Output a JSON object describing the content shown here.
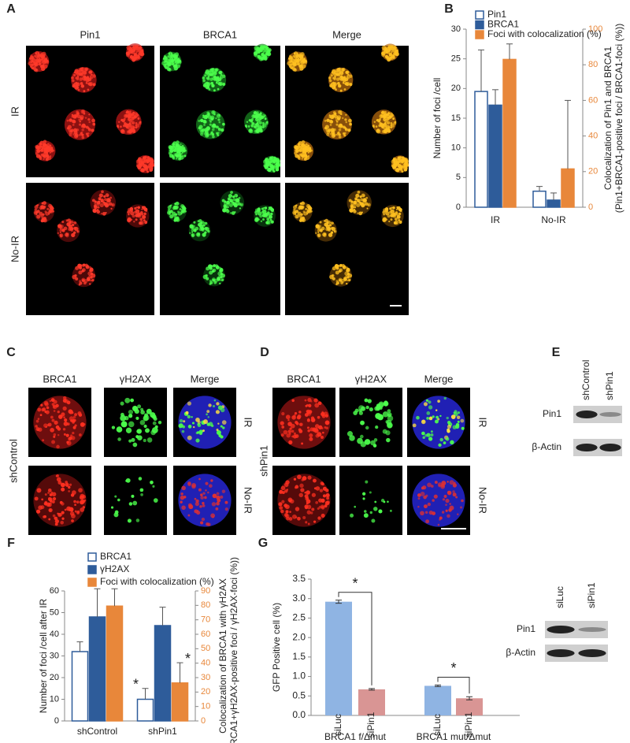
{
  "panel_labels": [
    "A",
    "B",
    "C",
    "D",
    "E",
    "F",
    "G"
  ],
  "panel_a": {
    "columns": [
      "Pin1",
      "BRCA1",
      "Merge"
    ],
    "rows": [
      "IR",
      "No-IR"
    ]
  },
  "panel_c": {
    "columns": [
      "BRCA1",
      "γH2AX",
      "Merge"
    ],
    "condition": "shControl",
    "rows": [
      "IR",
      "No-IR"
    ]
  },
  "panel_d": {
    "columns": [
      "BRCA1",
      "γH2AX",
      "Merge"
    ],
    "condition": "shPin1",
    "rows": [
      "IR",
      "No-IR"
    ]
  },
  "panel_e": {
    "lanes": [
      "shControl",
      "shPin1"
    ],
    "rows": [
      "Pin1",
      "β-Actin"
    ]
  },
  "chart_data": [
    {
      "type": "bar",
      "categories": [
        "IR",
        "No-IR"
      ],
      "ylabel": "Number of foci /cell",
      "y2label": [
        "Colocalization of Pin1 and BRCA1",
        "(Pin1+BRCA1-positive foci / BRCA1-foci (%))"
      ],
      "ylim": [
        0,
        30
      ],
      "yticks": [
        0,
        5,
        10,
        15,
        20,
        25,
        30
      ],
      "y2lim": [
        0,
        100
      ],
      "y2ticks": [
        0,
        20,
        40,
        60,
        80,
        100
      ],
      "series": [
        {
          "name": "Pin1",
          "color": "#ffffff",
          "edge": "#2e5c9a",
          "values": [
            19.5,
            2.7
          ],
          "errors": [
            7,
            0.8
          ]
        },
        {
          "name": "BRCA1",
          "color": "#2e5c9a",
          "edge": "#2e5c9a",
          "values": [
            17.2,
            1.2
          ],
          "errors": [
            2.6,
            1.2
          ]
        },
        {
          "name": "Foci with colocalization (%)",
          "color": "#e8873a",
          "edge": "#e8873a",
          "axis": "y2",
          "values": [
            83,
            21.5
          ],
          "errors": [
            8.7,
            38.5
          ]
        }
      ]
    },
    {
      "type": "bar",
      "categories": [
        "shControl",
        "shPin1"
      ],
      "ylabel": "Number of foci /cell after IR",
      "y2label": [
        "Colocalization of  BRCA1 with γH2AX",
        "(BRCA1+γH2AX-positive foci / γH2AX-foci (%))"
      ],
      "ylim": [
        0,
        60
      ],
      "yticks": [
        0,
        10,
        20,
        30,
        40,
        50,
        60
      ],
      "y2lim": [
        0,
        90
      ],
      "y2ticks": [
        0,
        10,
        20,
        30,
        40,
        50,
        60,
        70,
        80,
        90
      ],
      "annotations": [
        "*",
        "*"
      ],
      "series": [
        {
          "name": "BRCA1",
          "color": "#ffffff",
          "edge": "#2e5c9a",
          "values": [
            32,
            10
          ],
          "errors": [
            4.5,
            5
          ]
        },
        {
          "name": "γH2AX",
          "color": "#2e5c9a",
          "edge": "#2e5c9a",
          "values": [
            48,
            44
          ],
          "errors": [
            13,
            8.5
          ]
        },
        {
          "name": "Foci with colocalization (%)",
          "color": "#e8873a",
          "edge": "#e8873a",
          "axis": "y2",
          "values": [
            79.5,
            26.3
          ],
          "errors": [
            12,
            14
          ]
        }
      ]
    },
    {
      "type": "bar",
      "categories": [
        "siLuc",
        "siPin1",
        "siLuc",
        "siPin1"
      ],
      "groups": [
        "BRCA1 f/Δmut",
        "BRCA1 mut/Δmut"
      ],
      "ylabel": "GFP Positive cell (%)",
      "ylim": [
        0,
        3.5
      ],
      "yticks": [
        {
          "value": 0,
          "label": "0.0"
        },
        0.5,
        {
          "value": 1,
          "label": "1.0"
        },
        1.5,
        {
          "value": 2,
          "label": "2.0"
        },
        2.5,
        {
          "value": 3,
          "label": "3.0"
        },
        3.5
      ],
      "values": [
        2.92,
        0.67,
        0.76,
        0.44
      ],
      "errors": [
        0.04,
        0.02,
        0.02,
        0.04
      ],
      "colors": [
        "#8fb4e3",
        "#d99594",
        "#8fb4e3",
        "#d99594"
      ],
      "annotations": [
        "*",
        "*"
      ],
      "inset": {
        "lanes": [
          "siLuc",
          "siPin1"
        ],
        "rows": [
          "Pin1",
          "β-Actin"
        ]
      }
    }
  ]
}
